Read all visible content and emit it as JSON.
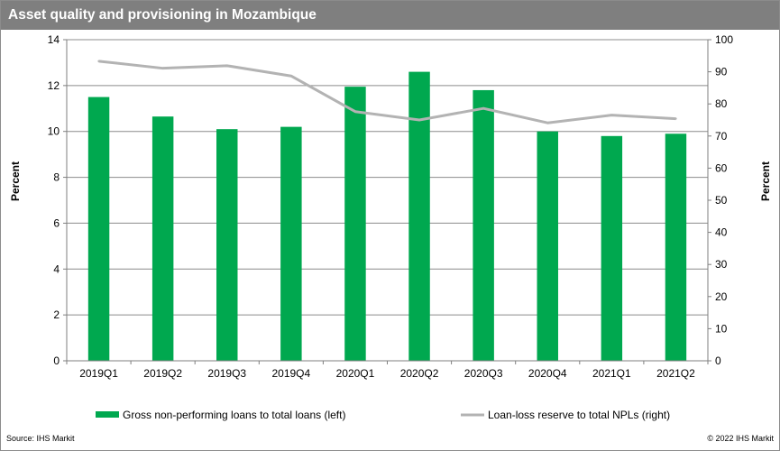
{
  "title": "Asset quality and provisioning in Mozambique",
  "footer": {
    "source": "Source: IHS Markit",
    "copyright": "© 2022 IHS Markit"
  },
  "colors": {
    "bar": "#00a84f",
    "line": "#b3b3b3",
    "title_bg": "#7f7f7f",
    "grid": "#8c8c8c"
  },
  "chart_data": {
    "type": "bar+line",
    "categories": [
      "2019Q1",
      "2019Q2",
      "2019Q3",
      "2019Q4",
      "2020Q1",
      "2020Q2",
      "2020Q3",
      "2020Q4",
      "2021Q1",
      "2021Q2"
    ],
    "series": [
      {
        "name": "Gross non-performing loans to total loans (left)",
        "type": "bar",
        "axis": "left",
        "values": [
          11.5,
          10.65,
          10.1,
          10.2,
          11.95,
          12.6,
          11.8,
          10.0,
          9.8,
          9.9
        ]
      },
      {
        "name": "Loan-loss reserve to total NPLs (right)",
        "type": "line",
        "axis": "right",
        "values": [
          93.3,
          91.1,
          91.9,
          88.7,
          77.6,
          75.0,
          78.6,
          74.1,
          76.5,
          75.4
        ]
      }
    ],
    "y_left": {
      "label": "Percent",
      "min": 0,
      "max": 14,
      "ticks": [
        0,
        2,
        4,
        6,
        8,
        10,
        12,
        14
      ]
    },
    "y_right": {
      "label": "Percent",
      "min": 0,
      "max": 100,
      "ticks": [
        0,
        10,
        20,
        30,
        40,
        50,
        60,
        70,
        80,
        90,
        100
      ]
    },
    "legend_position": "bottom",
    "grid": true
  }
}
